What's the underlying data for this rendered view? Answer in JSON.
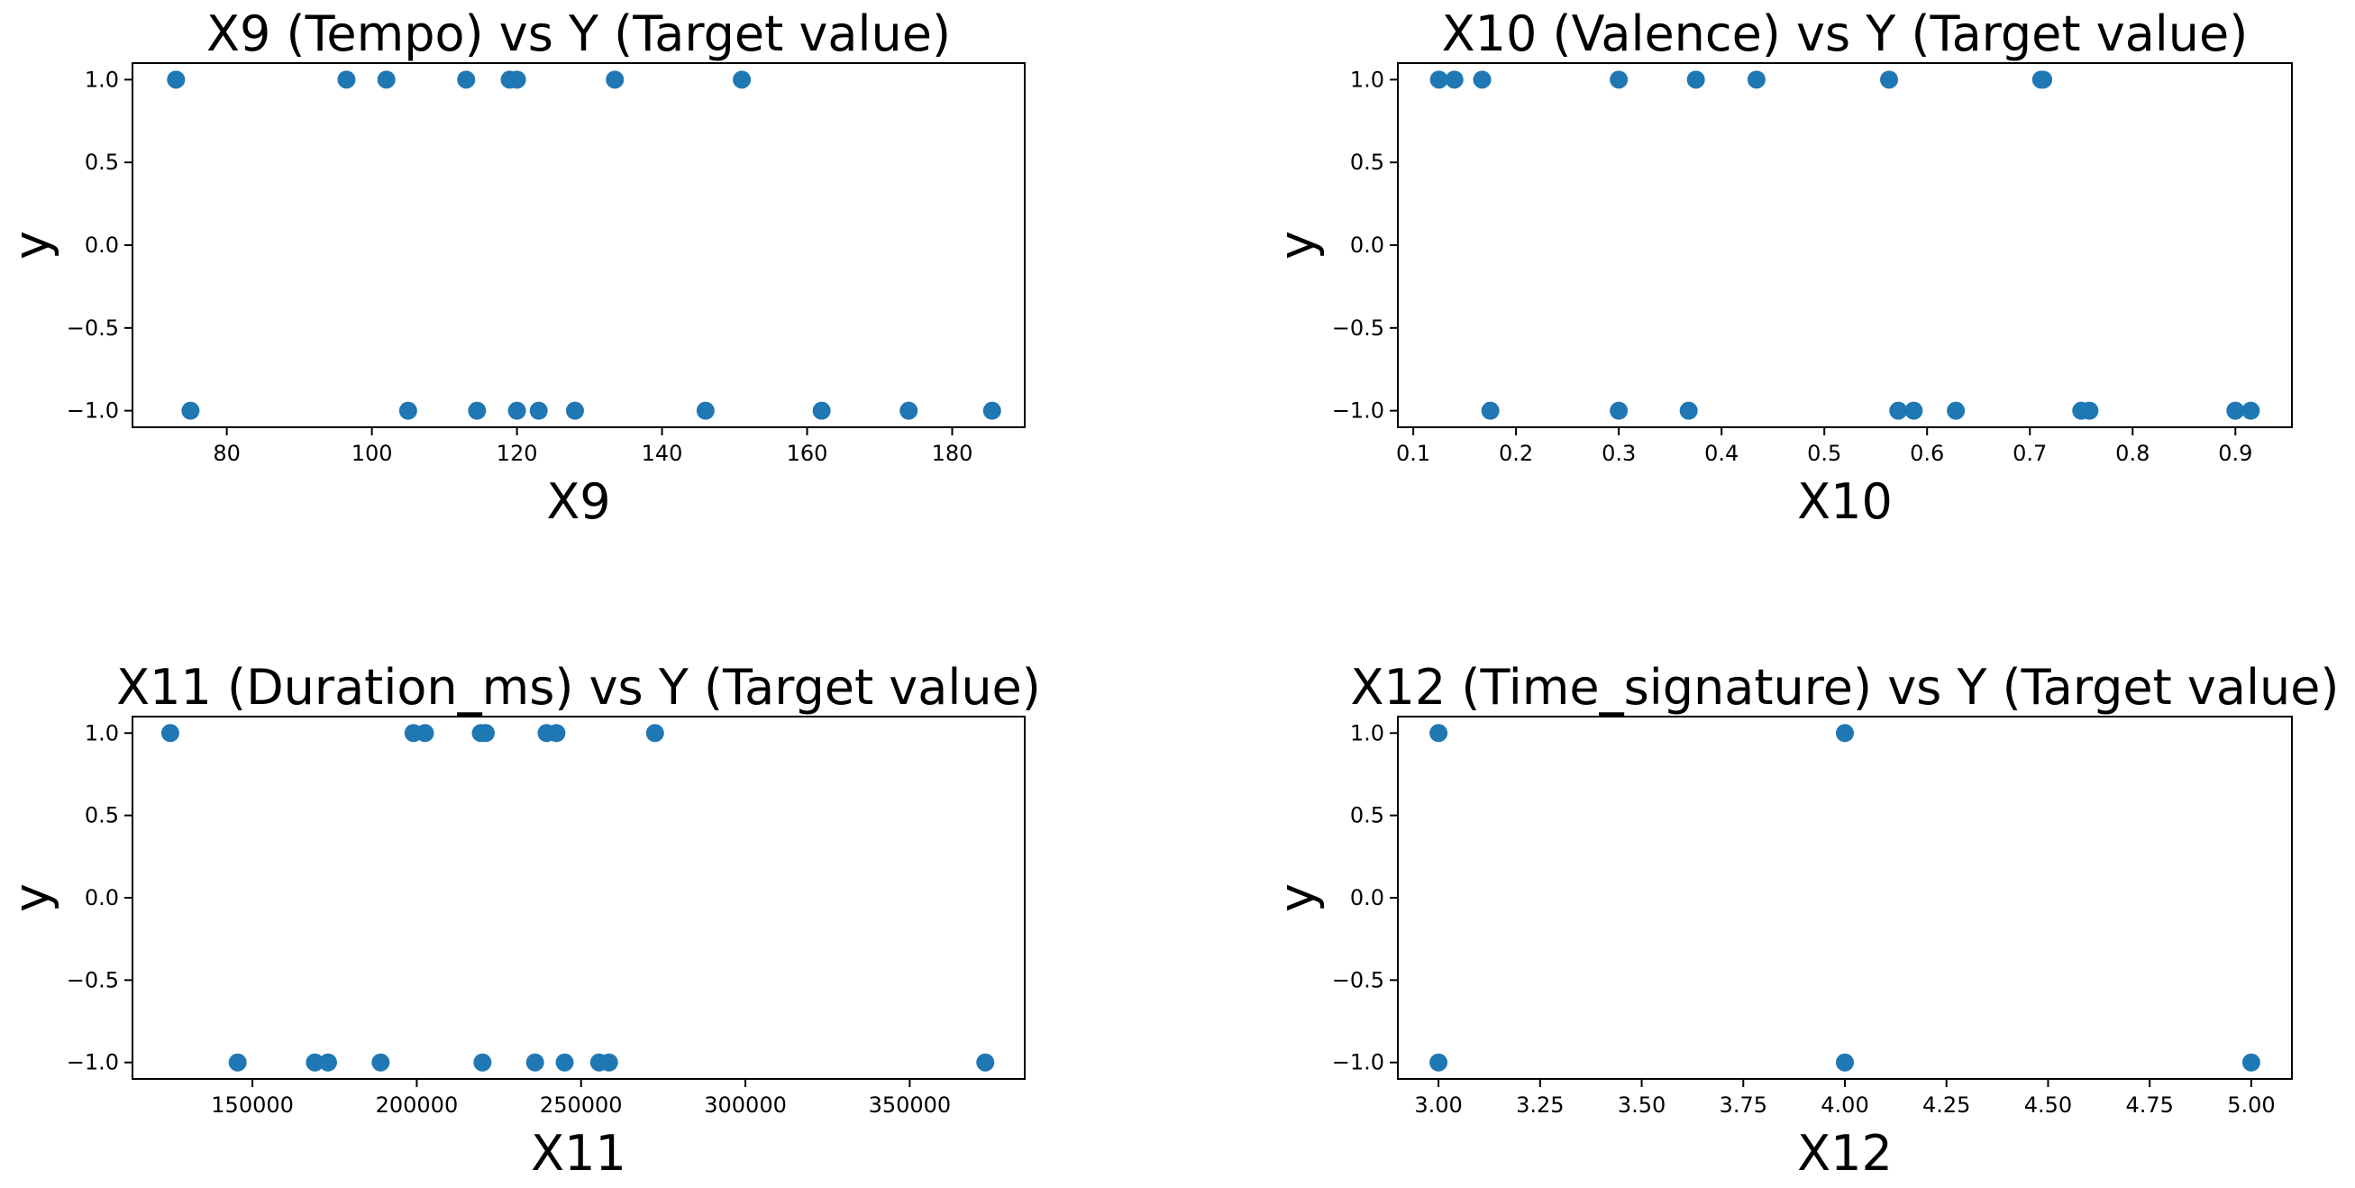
{
  "chart_data": [
    {
      "type": "scatter",
      "title": "X9 (Tempo) vs Y (Target value)",
      "xlabel": "X9",
      "ylabel": "y",
      "xlim": [
        67,
        190
      ],
      "ylim": [
        -1.1,
        1.1
      ],
      "xticks": [
        80,
        100,
        120,
        140,
        160,
        180
      ],
      "xtick_labels": [
        "80",
        "100",
        "120",
        "140",
        "160",
        "180"
      ],
      "yticks": [
        -1.0,
        -0.5,
        0.0,
        0.5,
        1.0
      ],
      "ytick_labels": [
        "−1.0",
        "−0.5",
        "0.0",
        "0.5",
        "1.0"
      ],
      "color": "#1f77b4",
      "points": [
        {
          "x": 73,
          "y": 1
        },
        {
          "x": 96.5,
          "y": 1
        },
        {
          "x": 102,
          "y": 1
        },
        {
          "x": 113,
          "y": 1
        },
        {
          "x": 119,
          "y": 1
        },
        {
          "x": 120,
          "y": 1
        },
        {
          "x": 133.5,
          "y": 1
        },
        {
          "x": 151,
          "y": 1
        },
        {
          "x": 75,
          "y": -1
        },
        {
          "x": 105,
          "y": -1
        },
        {
          "x": 114.5,
          "y": -1
        },
        {
          "x": 120,
          "y": -1
        },
        {
          "x": 123,
          "y": -1
        },
        {
          "x": 128,
          "y": -1
        },
        {
          "x": 146,
          "y": -1
        },
        {
          "x": 162,
          "y": -1
        },
        {
          "x": 174,
          "y": -1
        },
        {
          "x": 185.5,
          "y": -1
        }
      ]
    },
    {
      "type": "scatter",
      "title": "X10 (Valence) vs Y (Target value)",
      "xlabel": "X10",
      "ylabel": "y",
      "xlim": [
        0.085,
        0.955
      ],
      "ylim": [
        -1.1,
        1.1
      ],
      "xticks": [
        0.1,
        0.2,
        0.3,
        0.4,
        0.5,
        0.6,
        0.7,
        0.8,
        0.9
      ],
      "xtick_labels": [
        "0.1",
        "0.2",
        "0.3",
        "0.4",
        "0.5",
        "0.6",
        "0.7",
        "0.8",
        "0.9"
      ],
      "yticks": [
        -1.0,
        -0.5,
        0.0,
        0.5,
        1.0
      ],
      "ytick_labels": [
        "−1.0",
        "−0.5",
        "0.0",
        "0.5",
        "1.0"
      ],
      "color": "#1f77b4",
      "points": [
        {
          "x": 0.125,
          "y": 1
        },
        {
          "x": 0.14,
          "y": 1
        },
        {
          "x": 0.167,
          "y": 1
        },
        {
          "x": 0.3,
          "y": 1
        },
        {
          "x": 0.375,
          "y": 1
        },
        {
          "x": 0.434,
          "y": 1
        },
        {
          "x": 0.563,
          "y": 1
        },
        {
          "x": 0.711,
          "y": 1
        },
        {
          "x": 0.713,
          "y": 1
        },
        {
          "x": 0.175,
          "y": -1
        },
        {
          "x": 0.3,
          "y": -1
        },
        {
          "x": 0.368,
          "y": -1
        },
        {
          "x": 0.572,
          "y": -1
        },
        {
          "x": 0.587,
          "y": -1
        },
        {
          "x": 0.628,
          "y": -1
        },
        {
          "x": 0.75,
          "y": -1
        },
        {
          "x": 0.758,
          "y": -1
        },
        {
          "x": 0.9,
          "y": -1
        },
        {
          "x": 0.915,
          "y": -1
        }
      ]
    },
    {
      "type": "scatter",
      "title": "X11 (Duration_ms) vs Y (Target value)",
      "xlabel": "X11",
      "ylabel": "y",
      "xlim": [
        113500,
        385000
      ],
      "ylim": [
        -1.1,
        1.1
      ],
      "xticks": [
        150000,
        200000,
        250000,
        300000,
        350000
      ],
      "xtick_labels": [
        "150000",
        "200000",
        "250000",
        "300000",
        "350000"
      ],
      "yticks": [
        -1.0,
        -0.5,
        0.0,
        0.5,
        1.0
      ],
      "ytick_labels": [
        "−1.0",
        "−0.5",
        "0.0",
        "0.5",
        "1.0"
      ],
      "color": "#1f77b4",
      "points": [
        {
          "x": 125000,
          "y": 1
        },
        {
          "x": 199000,
          "y": 1
        },
        {
          "x": 202500,
          "y": 1
        },
        {
          "x": 219500,
          "y": 1
        },
        {
          "x": 221000,
          "y": 1
        },
        {
          "x": 239500,
          "y": 1
        },
        {
          "x": 242500,
          "y": 1
        },
        {
          "x": 272500,
          "y": 1
        },
        {
          "x": 145500,
          "y": -1
        },
        {
          "x": 169000,
          "y": -1
        },
        {
          "x": 173000,
          "y": -1
        },
        {
          "x": 189000,
          "y": -1
        },
        {
          "x": 220000,
          "y": -1
        },
        {
          "x": 236000,
          "y": -1
        },
        {
          "x": 245000,
          "y": -1
        },
        {
          "x": 255500,
          "y": -1
        },
        {
          "x": 258500,
          "y": -1
        },
        {
          "x": 373000,
          "y": -1
        }
      ]
    },
    {
      "type": "scatter",
      "title": "X12 (Time_signature) vs Y (Target value)",
      "xlabel": "X12",
      "ylabel": "y",
      "xlim": [
        2.9,
        5.1
      ],
      "ylim": [
        -1.1,
        1.1
      ],
      "xticks": [
        3.0,
        3.25,
        3.5,
        3.75,
        4.0,
        4.25,
        4.5,
        4.75,
        5.0
      ],
      "xtick_labels": [
        "3.00",
        "3.25",
        "3.50",
        "3.75",
        "4.00",
        "4.25",
        "4.50",
        "4.75",
        "5.00"
      ],
      "yticks": [
        -1.0,
        -0.5,
        0.0,
        0.5,
        1.0
      ],
      "ytick_labels": [
        "−1.0",
        "−0.5",
        "0.0",
        "0.5",
        "1.0"
      ],
      "color": "#1f77b4",
      "points": [
        {
          "x": 3,
          "y": 1
        },
        {
          "x": 4,
          "y": 1
        },
        {
          "x": 3,
          "y": -1
        },
        {
          "x": 4,
          "y": -1
        },
        {
          "x": 5,
          "y": -1
        }
      ]
    }
  ]
}
